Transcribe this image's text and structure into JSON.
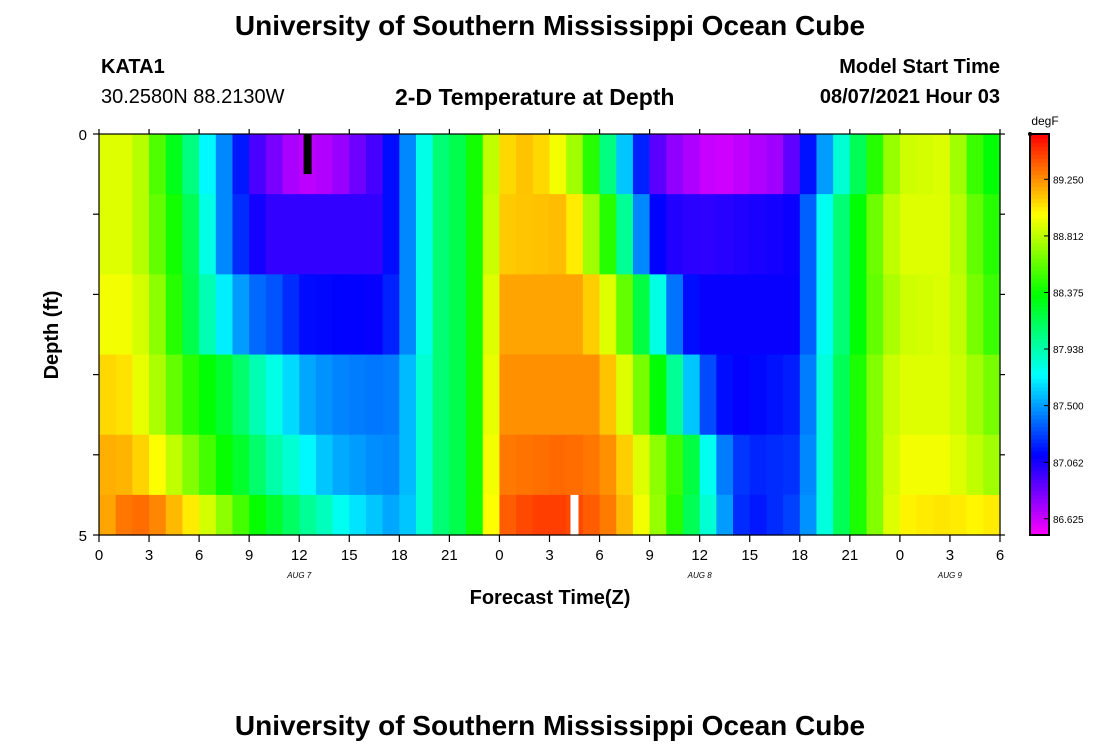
{
  "header": {
    "title": "University of Southern Mississippi Ocean Cube",
    "station_id": "KATA1",
    "coordinates": "30.2580N  88.2130W",
    "subtitle": "2-D Temperature at Depth",
    "model_start_label": "Model Start Time",
    "model_start_value": "08/07/2021 Hour 03"
  },
  "footer": {
    "title": "University of Southern Mississippi Ocean Cube"
  },
  "chart_data": {
    "type": "heatmap",
    "title": "2-D Temperature at Depth",
    "xlabel": "Forecast Time(Z)",
    "ylabel": "Depth (ft)",
    "x_start_hour": 0,
    "x_end_hour": 54,
    "x_step_hours": 1,
    "x_tick_labels": [
      "0",
      "3",
      "6",
      "9",
      "12",
      "15",
      "18",
      "21",
      "0",
      "3",
      "6",
      "9",
      "12",
      "15",
      "18",
      "21",
      "0",
      "3",
      "6"
    ],
    "date_labels": [
      {
        "text": "AUG 7",
        "hour": 12
      },
      {
        "text": "AUG 8",
        "hour": 36
      },
      {
        "text": "AUG 9",
        "hour": 51
      }
    ],
    "ylim": [
      0,
      5
    ],
    "y_tick_labels": [
      "0",
      "5"
    ],
    "depth_bands": [
      0.25,
      1.25,
      2.25,
      3.25,
      4.25,
      4.75
    ],
    "colorbar": {
      "unit": "degF",
      "min": 86.5,
      "max": 89.6,
      "tick_values": [
        89.25,
        88.812,
        88.375,
        87.938,
        87.5,
        87.062,
        86.625
      ],
      "tick_labels": [
        "89.250",
        "88.812",
        "88.375",
        "87.938",
        "87.500",
        "87.062",
        "86.625"
      ]
    },
    "temperature_keyframes": [
      [
        [
          0,
          88.9
        ],
        [
          2,
          88.9
        ],
        [
          3,
          88.7
        ],
        [
          4,
          88.4
        ],
        [
          5,
          88.2
        ],
        [
          6,
          87.9
        ],
        [
          7,
          87.55
        ],
        [
          8,
          87.35
        ],
        [
          9,
          87.0
        ],
        [
          12,
          86.65
        ],
        [
          14,
          86.7
        ],
        [
          17,
          87.0
        ],
        [
          18,
          87.3
        ],
        [
          19,
          87.6
        ],
        [
          20,
          88.0
        ],
        [
          21,
          88.15
        ],
        [
          22,
          88.2
        ],
        [
          23,
          88.6
        ],
        [
          24,
          89.05
        ],
        [
          26,
          89.15
        ],
        [
          27,
          89.0
        ],
        [
          28,
          88.9
        ],
        [
          29,
          88.6
        ],
        [
          30,
          88.3
        ],
        [
          31,
          87.8
        ],
        [
          32,
          87.4
        ],
        [
          33,
          87.0
        ],
        [
          34,
          86.8
        ],
        [
          37,
          86.6
        ],
        [
          41,
          86.75
        ],
        [
          43,
          87.3
        ],
        [
          44,
          87.7
        ],
        [
          45,
          88.0
        ],
        [
          46,
          88.3
        ],
        [
          47,
          88.6
        ],
        [
          48,
          88.85
        ],
        [
          51,
          88.9
        ],
        [
          52,
          88.6
        ],
        [
          53,
          88.4
        ],
        [
          54,
          88.3
        ]
      ],
      [
        [
          0,
          88.9
        ],
        [
          2,
          88.9
        ],
        [
          3,
          88.7
        ],
        [
          4,
          88.5
        ],
        [
          5,
          88.3
        ],
        [
          6,
          88.0
        ],
        [
          7,
          87.6
        ],
        [
          8,
          87.3
        ],
        [
          9,
          87.15
        ],
        [
          10,
          87.0
        ],
        [
          17,
          87.0
        ],
        [
          18,
          87.3
        ],
        [
          19,
          87.6
        ],
        [
          20,
          88.0
        ],
        [
          21,
          88.15
        ],
        [
          22,
          88.2
        ],
        [
          23,
          88.6
        ],
        [
          24,
          89.1
        ],
        [
          28,
          89.15
        ],
        [
          29,
          88.9
        ],
        [
          30,
          88.6
        ],
        [
          31,
          88.3
        ],
        [
          32,
          87.7
        ],
        [
          33,
          87.2
        ],
        [
          34,
          87.05
        ],
        [
          36,
          87.0
        ],
        [
          42,
          87.1
        ],
        [
          43,
          87.6
        ],
        [
          44,
          87.95
        ],
        [
          45,
          88.2
        ],
        [
          46,
          88.5
        ],
        [
          47,
          88.75
        ],
        [
          48,
          88.9
        ],
        [
          51,
          88.9
        ],
        [
          52,
          88.7
        ],
        [
          53,
          88.5
        ],
        [
          54,
          88.4
        ]
      ],
      [
        [
          0,
          88.95
        ],
        [
          2,
          88.95
        ],
        [
          3,
          88.8
        ],
        [
          4,
          88.6
        ],
        [
          5,
          88.3
        ],
        [
          6,
          88.05
        ],
        [
          7,
          87.8
        ],
        [
          8,
          87.6
        ],
        [
          9,
          87.4
        ],
        [
          11,
          87.3
        ],
        [
          12,
          87.15
        ],
        [
          17,
          87.1
        ],
        [
          18,
          87.3
        ],
        [
          19,
          87.6
        ],
        [
          20,
          88.0
        ],
        [
          21,
          88.15
        ],
        [
          22,
          88.2
        ],
        [
          23,
          88.6
        ],
        [
          24,
          89.2
        ],
        [
          29,
          89.2
        ],
        [
          30,
          89.0
        ],
        [
          31,
          88.8
        ],
        [
          32,
          88.4
        ],
        [
          33,
          88.0
        ],
        [
          34,
          87.6
        ],
        [
          35,
          87.2
        ],
        [
          36,
          87.1
        ],
        [
          42,
          87.1
        ],
        [
          43,
          87.6
        ],
        [
          44,
          87.95
        ],
        [
          45,
          88.2
        ],
        [
          46,
          88.5
        ],
        [
          47,
          88.7
        ],
        [
          48,
          88.85
        ],
        [
          51,
          88.9
        ],
        [
          52,
          88.75
        ],
        [
          53,
          88.55
        ],
        [
          54,
          88.45
        ]
      ],
      [
        [
          0,
          89.05
        ],
        [
          1,
          89.1
        ],
        [
          2,
          89.0
        ],
        [
          3,
          88.85
        ],
        [
          4,
          88.7
        ],
        [
          5,
          88.5
        ],
        [
          6,
          88.4
        ],
        [
          8,
          88.2
        ],
        [
          9,
          88.0
        ],
        [
          10,
          87.85
        ],
        [
          11,
          87.75
        ],
        [
          12,
          87.55
        ],
        [
          14,
          87.45
        ],
        [
          17,
          87.4
        ],
        [
          18,
          87.45
        ],
        [
          19,
          87.7
        ],
        [
          20,
          88.0
        ],
        [
          21,
          88.15
        ],
        [
          22,
          88.2
        ],
        [
          23,
          88.6
        ],
        [
          24,
          89.25
        ],
        [
          30,
          89.25
        ],
        [
          31,
          89.0
        ],
        [
          32,
          88.8
        ],
        [
          33,
          88.5
        ],
        [
          34,
          88.2
        ],
        [
          35,
          87.8
        ],
        [
          36,
          87.4
        ],
        [
          37,
          87.2
        ],
        [
          38,
          87.1
        ],
        [
          42,
          87.2
        ],
        [
          43,
          87.65
        ],
        [
          44,
          88.0
        ],
        [
          45,
          88.3
        ],
        [
          46,
          88.55
        ],
        [
          47,
          88.8
        ],
        [
          48,
          88.9
        ],
        [
          51,
          88.9
        ],
        [
          52,
          88.8
        ],
        [
          53,
          88.7
        ],
        [
          54,
          88.6
        ]
      ],
      [
        [
          0,
          89.15
        ],
        [
          1,
          89.2
        ],
        [
          3,
          89.05
        ],
        [
          4,
          88.9
        ],
        [
          5,
          88.75
        ],
        [
          6,
          88.6
        ],
        [
          7,
          88.45
        ],
        [
          8,
          88.3
        ],
        [
          9,
          88.2
        ],
        [
          10,
          88.0
        ],
        [
          11,
          87.9
        ],
        [
          12,
          87.8
        ],
        [
          13,
          87.65
        ],
        [
          14,
          87.55
        ],
        [
          17,
          87.45
        ],
        [
          18,
          87.45
        ],
        [
          19,
          87.7
        ],
        [
          20,
          88.0
        ],
        [
          21,
          88.15
        ],
        [
          22,
          88.2
        ],
        [
          23,
          88.6
        ],
        [
          24,
          89.3
        ],
        [
          28,
          89.35
        ],
        [
          30,
          89.3
        ],
        [
          31,
          89.2
        ],
        [
          32,
          89.0
        ],
        [
          33,
          88.8
        ],
        [
          34,
          88.6
        ],
        [
          35,
          88.4
        ],
        [
          36,
          88.0
        ],
        [
          37,
          87.55
        ],
        [
          38,
          87.3
        ],
        [
          39,
          87.2
        ],
        [
          42,
          87.25
        ],
        [
          43,
          87.65
        ],
        [
          44,
          88.0
        ],
        [
          45,
          88.3
        ],
        [
          46,
          88.55
        ],
        [
          47,
          88.8
        ],
        [
          48,
          88.95
        ],
        [
          51,
          88.95
        ],
        [
          52,
          88.85
        ],
        [
          53,
          88.8
        ],
        [
          54,
          88.7
        ]
      ],
      [
        [
          0,
          89.1
        ],
        [
          1,
          89.3
        ],
        [
          3,
          89.35
        ],
        [
          4,
          89.2
        ],
        [
          5,
          89.1
        ],
        [
          6,
          88.95
        ],
        [
          7,
          88.8
        ],
        [
          8,
          88.6
        ],
        [
          9,
          88.45
        ],
        [
          10,
          88.3
        ],
        [
          11,
          88.2
        ],
        [
          12,
          88.05
        ],
        [
          13,
          87.95
        ],
        [
          14,
          87.85
        ],
        [
          15,
          87.7
        ],
        [
          16,
          87.65
        ],
        [
          17,
          87.55
        ],
        [
          18,
          87.5
        ],
        [
          19,
          87.7
        ],
        [
          20,
          88.0
        ],
        [
          21,
          88.15
        ],
        [
          22,
          88.2
        ],
        [
          23,
          88.6
        ],
        [
          24,
          89.35
        ],
        [
          26,
          89.45
        ],
        [
          28,
          89.45
        ],
        [
          30,
          89.35
        ],
        [
          31,
          89.25
        ],
        [
          32,
          89.05
        ],
        [
          33,
          88.85
        ],
        [
          34,
          88.6
        ],
        [
          35,
          88.3
        ],
        [
          36,
          88.0
        ],
        [
          37,
          87.7
        ],
        [
          38,
          87.3
        ],
        [
          39,
          87.15
        ],
        [
          42,
          87.3
        ],
        [
          43,
          87.65
        ],
        [
          44,
          88.0
        ],
        [
          45,
          88.3
        ],
        [
          46,
          88.55
        ],
        [
          47,
          88.8
        ],
        [
          48,
          89.0
        ],
        [
          51,
          89.05
        ],
        [
          52,
          89.0
        ],
        [
          53,
          89.0
        ],
        [
          54,
          89.05
        ]
      ]
    ],
    "markers": [
      {
        "name": "black-marker",
        "color": "#000000",
        "hour": 12.5,
        "depth_from": 0,
        "depth_to": 0.5
      },
      {
        "name": "white-marker",
        "color": "#ffffff",
        "hour": 28.5,
        "depth_from": 4.5,
        "depth_to": 5
      }
    ]
  }
}
